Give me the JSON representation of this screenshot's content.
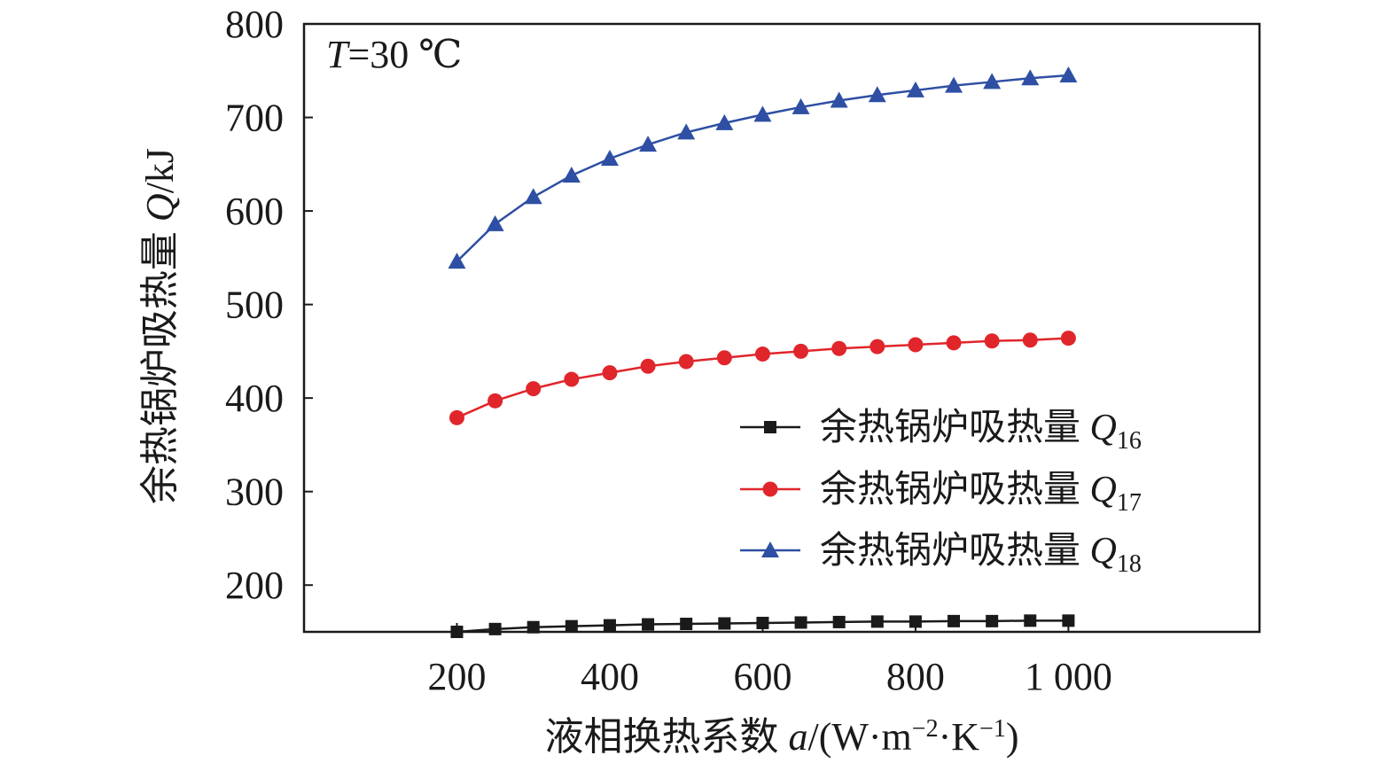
{
  "chart_data": {
    "type": "line",
    "annotation": {
      "var": "T",
      "rest": "=30 ℃"
    },
    "xlabel": {
      "prefix": "液相换热系数 ",
      "var": "a",
      "suffix": "/(W·m",
      "sup1": "−2",
      "mid": "·K",
      "sup2": "−1",
      "end": ")"
    },
    "ylabel": {
      "prefix": "余热锅炉吸热量 ",
      "var": "Q",
      "suffix": "/kJ"
    },
    "xlim": [
      0,
      1250
    ],
    "ylim": [
      150,
      800
    ],
    "xticks": [
      200,
      400,
      600,
      800,
      1000
    ],
    "xtick_labels": [
      "200",
      "400",
      "600",
      "800",
      "1 000"
    ],
    "yticks": [
      200,
      300,
      400,
      500,
      600,
      700,
      800
    ],
    "ytick_labels": [
      "200",
      "300",
      "400",
      "500",
      "600",
      "700",
      "800"
    ],
    "x": [
      200,
      250,
      300,
      350,
      400,
      450,
      500,
      550,
      600,
      650,
      700,
      750,
      800,
      850,
      900,
      950,
      1000
    ],
    "series": [
      {
        "name": "余热锅炉吸热量 Q16",
        "label_base": "余热锅炉吸热量 ",
        "label_var": "Q",
        "label_sub": "16",
        "color": "#1a1a1a",
        "marker": "square",
        "values": [
          150,
          153,
          155,
          156,
          157,
          158,
          158.5,
          159,
          159.5,
          160,
          160.5,
          161,
          161,
          161.5,
          161.5,
          162,
          162
        ]
      },
      {
        "name": "余热锅炉吸热量 Q17",
        "label_base": "余热锅炉吸热量 ",
        "label_var": "Q",
        "label_sub": "17",
        "color": "#e0262b",
        "marker": "circle",
        "values": [
          379,
          397,
          410,
          420,
          427,
          434,
          439,
          443,
          447,
          450,
          453,
          455,
          457,
          459,
          461,
          462,
          464
        ]
      },
      {
        "name": "余热锅炉吸热量 Q18",
        "label_base": "余热锅炉吸热量 ",
        "label_var": "Q",
        "label_sub": "18",
        "color": "#2e4fa3",
        "marker": "triangle",
        "values": [
          546,
          586,
          615,
          638,
          656,
          671,
          684,
          694,
          703,
          711,
          718,
          724,
          729,
          734,
          738,
          742,
          745
        ]
      }
    ],
    "grid": false,
    "legend_position": "right"
  }
}
